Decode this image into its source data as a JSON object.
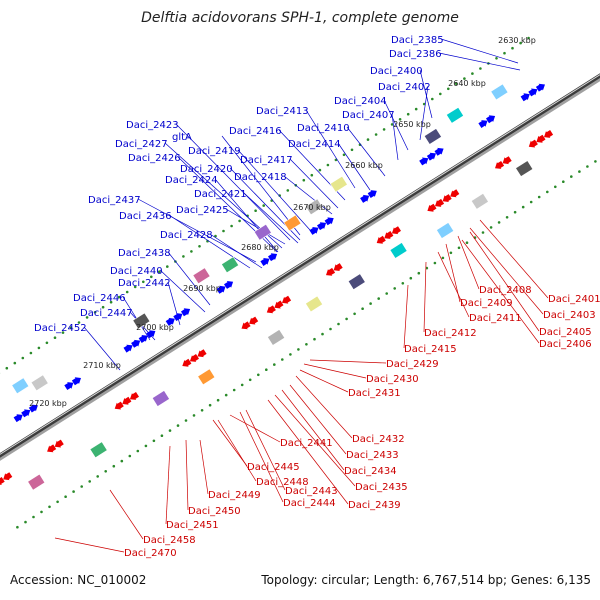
{
  "title": "Delftia acidovorans SPH-1, complete genome",
  "footer": {
    "accession": "Accession: NC_010002",
    "topology": "Topology: circular; Length: 6,767,514 bp; Genes: 6,135"
  },
  "colors": {
    "forward": "#0000ff",
    "reverse": "#ee0000",
    "backbone": "#808080",
    "ticks": "#2a8a2a",
    "label_forward": "#0000cc",
    "label_reverse": "#cc0000"
  },
  "scale_labels": [
    "2630 kbp",
    "2640 kbp",
    "2650 kbp",
    "2660 kbp",
    "2670 kbp",
    "2680 kbp",
    "2690 kbp",
    "2700 kbp",
    "2710 kbp",
    "2720 kbp"
  ],
  "forward_labels": [
    "Daci_2385",
    "Daci_2386",
    "Daci_2400",
    "Daci_2402",
    "Daci_2404",
    "Daci_2407",
    "Daci_2413",
    "Daci_2410",
    "Daci_2423",
    "gltA",
    "Daci_2416",
    "Daci_2414",
    "Daci_2427",
    "Daci_2419",
    "Daci_2426",
    "Daci_2417",
    "Daci_2420",
    "Daci_2424",
    "Daci_2418",
    "Daci_2421",
    "Daci_2437",
    "Daci_2425",
    "Daci_2436",
    "Daci_2428",
    "Daci_2438",
    "Daci_2440",
    "Daci_2442",
    "Daci_2446",
    "Daci_2447",
    "Daci_2452"
  ],
  "reverse_labels": [
    "Daci_2401",
    "Daci_2403",
    "Daci_2408",
    "Daci_2409",
    "Daci_2405",
    "Daci_2411",
    "Daci_2406",
    "Daci_2412",
    "Daci_2415",
    "Daci_2429",
    "Daci_2430",
    "Daci_2431",
    "Daci_2432",
    "Daci_2441",
    "Daci_2433",
    "Daci_2434",
    "Daci_2445",
    "Daci_2448",
    "Daci_2443",
    "Daci_2435",
    "Daci_2449",
    "Daci_2444",
    "Daci_2439",
    "Daci_2450",
    "Daci_2451",
    "Daci_2458",
    "Daci_2470"
  ]
}
